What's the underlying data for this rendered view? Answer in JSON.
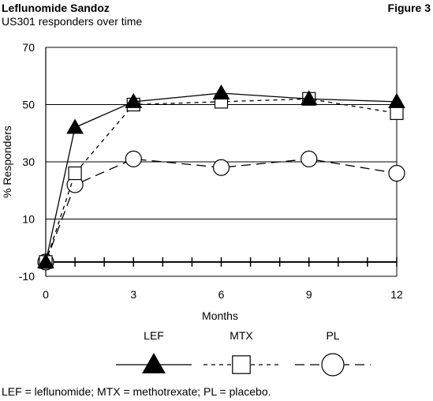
{
  "header": {
    "title": "Leflunomide Sandoz",
    "subtitle": "US301 responders over time",
    "figure_label": "Figure 3"
  },
  "footnote": "LEF = leflunomide; MTX = methotrexate; PL = placebo.",
  "chart_data": {
    "type": "line",
    "title": "",
    "xlabel": "Months",
    "ylabel": "% Responders",
    "xlim": [
      0,
      12
    ],
    "ylim": [
      -10,
      70
    ],
    "x_ticks": [
      0,
      3,
      6,
      9,
      12
    ],
    "y_ticks": [
      -10,
      10,
      30,
      50,
      70
    ],
    "grid": "horizontal",
    "legend_position": "bottom",
    "series": [
      {
        "name": "LEF",
        "marker": "triangle-filled",
        "line": "solid",
        "x": [
          0,
          1,
          3,
          6,
          9,
          12
        ],
        "y": [
          -5,
          42,
          51,
          54,
          52,
          51
        ]
      },
      {
        "name": "MTX",
        "marker": "square-open",
        "line": "short-dash",
        "x": [
          0,
          1,
          3,
          6,
          9,
          12
        ],
        "y": [
          -5,
          26,
          50,
          51,
          52,
          47
        ]
      },
      {
        "name": "PL",
        "marker": "circle-open",
        "line": "long-dash",
        "x": [
          0,
          1,
          3,
          6,
          9,
          12
        ],
        "y": [
          -5,
          22,
          31,
          28,
          31,
          26
        ]
      }
    ]
  }
}
